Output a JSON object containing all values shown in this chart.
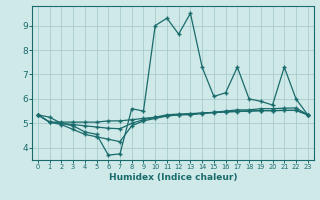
{
  "xlabel": "Humidex (Indice chaleur)",
  "ylabel": "",
  "xlim": [
    -0.5,
    23.5
  ],
  "ylim": [
    3.5,
    9.8
  ],
  "yticks": [
    4,
    5,
    6,
    7,
    8,
    9
  ],
  "xticks": [
    0,
    1,
    2,
    3,
    4,
    5,
    6,
    7,
    8,
    9,
    10,
    11,
    12,
    13,
    14,
    15,
    16,
    17,
    18,
    19,
    20,
    21,
    22,
    23
  ],
  "background_color": "#cfe8e8",
  "grid_color": "#a8cccc",
  "line_color": "#1a6b6b",
  "line1_x": [
    0,
    1,
    2,
    3,
    4,
    5,
    6,
    7,
    8,
    9,
    10,
    11,
    12,
    13,
    14,
    15,
    16,
    17,
    18,
    19,
    20,
    21,
    22,
    23
  ],
  "line1_y": [
    5.35,
    5.25,
    5.0,
    4.9,
    4.65,
    4.55,
    3.7,
    3.75,
    5.6,
    5.5,
    9.0,
    9.3,
    8.65,
    9.5,
    7.3,
    6.1,
    6.25,
    7.3,
    6.0,
    5.9,
    5.75,
    7.3,
    6.0,
    5.35
  ],
  "line2_x": [
    0,
    1,
    2,
    3,
    4,
    5,
    6,
    7,
    8,
    9,
    10,
    11,
    12,
    13,
    14,
    15,
    16,
    17,
    18,
    19,
    20,
    21,
    22,
    23
  ],
  "line2_y": [
    5.35,
    5.05,
    5.05,
    5.05,
    5.05,
    5.05,
    5.1,
    5.1,
    5.15,
    5.2,
    5.25,
    5.3,
    5.35,
    5.35,
    5.4,
    5.45,
    5.5,
    5.55,
    5.55,
    5.6,
    5.6,
    5.62,
    5.63,
    5.35
  ],
  "line3_x": [
    0,
    1,
    2,
    3,
    4,
    5,
    6,
    7,
    8,
    9,
    10,
    11,
    12,
    13,
    14,
    15,
    16,
    17,
    18,
    19,
    20,
    21,
    22,
    23
  ],
  "line3_y": [
    5.35,
    5.05,
    4.95,
    4.75,
    4.55,
    4.45,
    4.35,
    4.25,
    4.9,
    5.1,
    5.2,
    5.3,
    5.35,
    5.38,
    5.42,
    5.45,
    5.48,
    5.5,
    5.5,
    5.52,
    5.52,
    5.53,
    5.53,
    5.35
  ],
  "line4_x": [
    0,
    1,
    2,
    3,
    4,
    5,
    6,
    7,
    8,
    9,
    10,
    11,
    12,
    13,
    14,
    15,
    16,
    17,
    18,
    19,
    20,
    21,
    22,
    23
  ],
  "line4_y": [
    5.35,
    5.05,
    5.0,
    4.95,
    4.9,
    4.85,
    4.8,
    4.78,
    5.0,
    5.15,
    5.25,
    5.35,
    5.38,
    5.4,
    5.42,
    5.44,
    5.46,
    5.48,
    5.5,
    5.52,
    5.52,
    5.53,
    5.53,
    5.35
  ],
  "xlabel_fontsize": 6.5,
  "tick_fontsize_x": 4.8,
  "tick_fontsize_y": 6.5
}
